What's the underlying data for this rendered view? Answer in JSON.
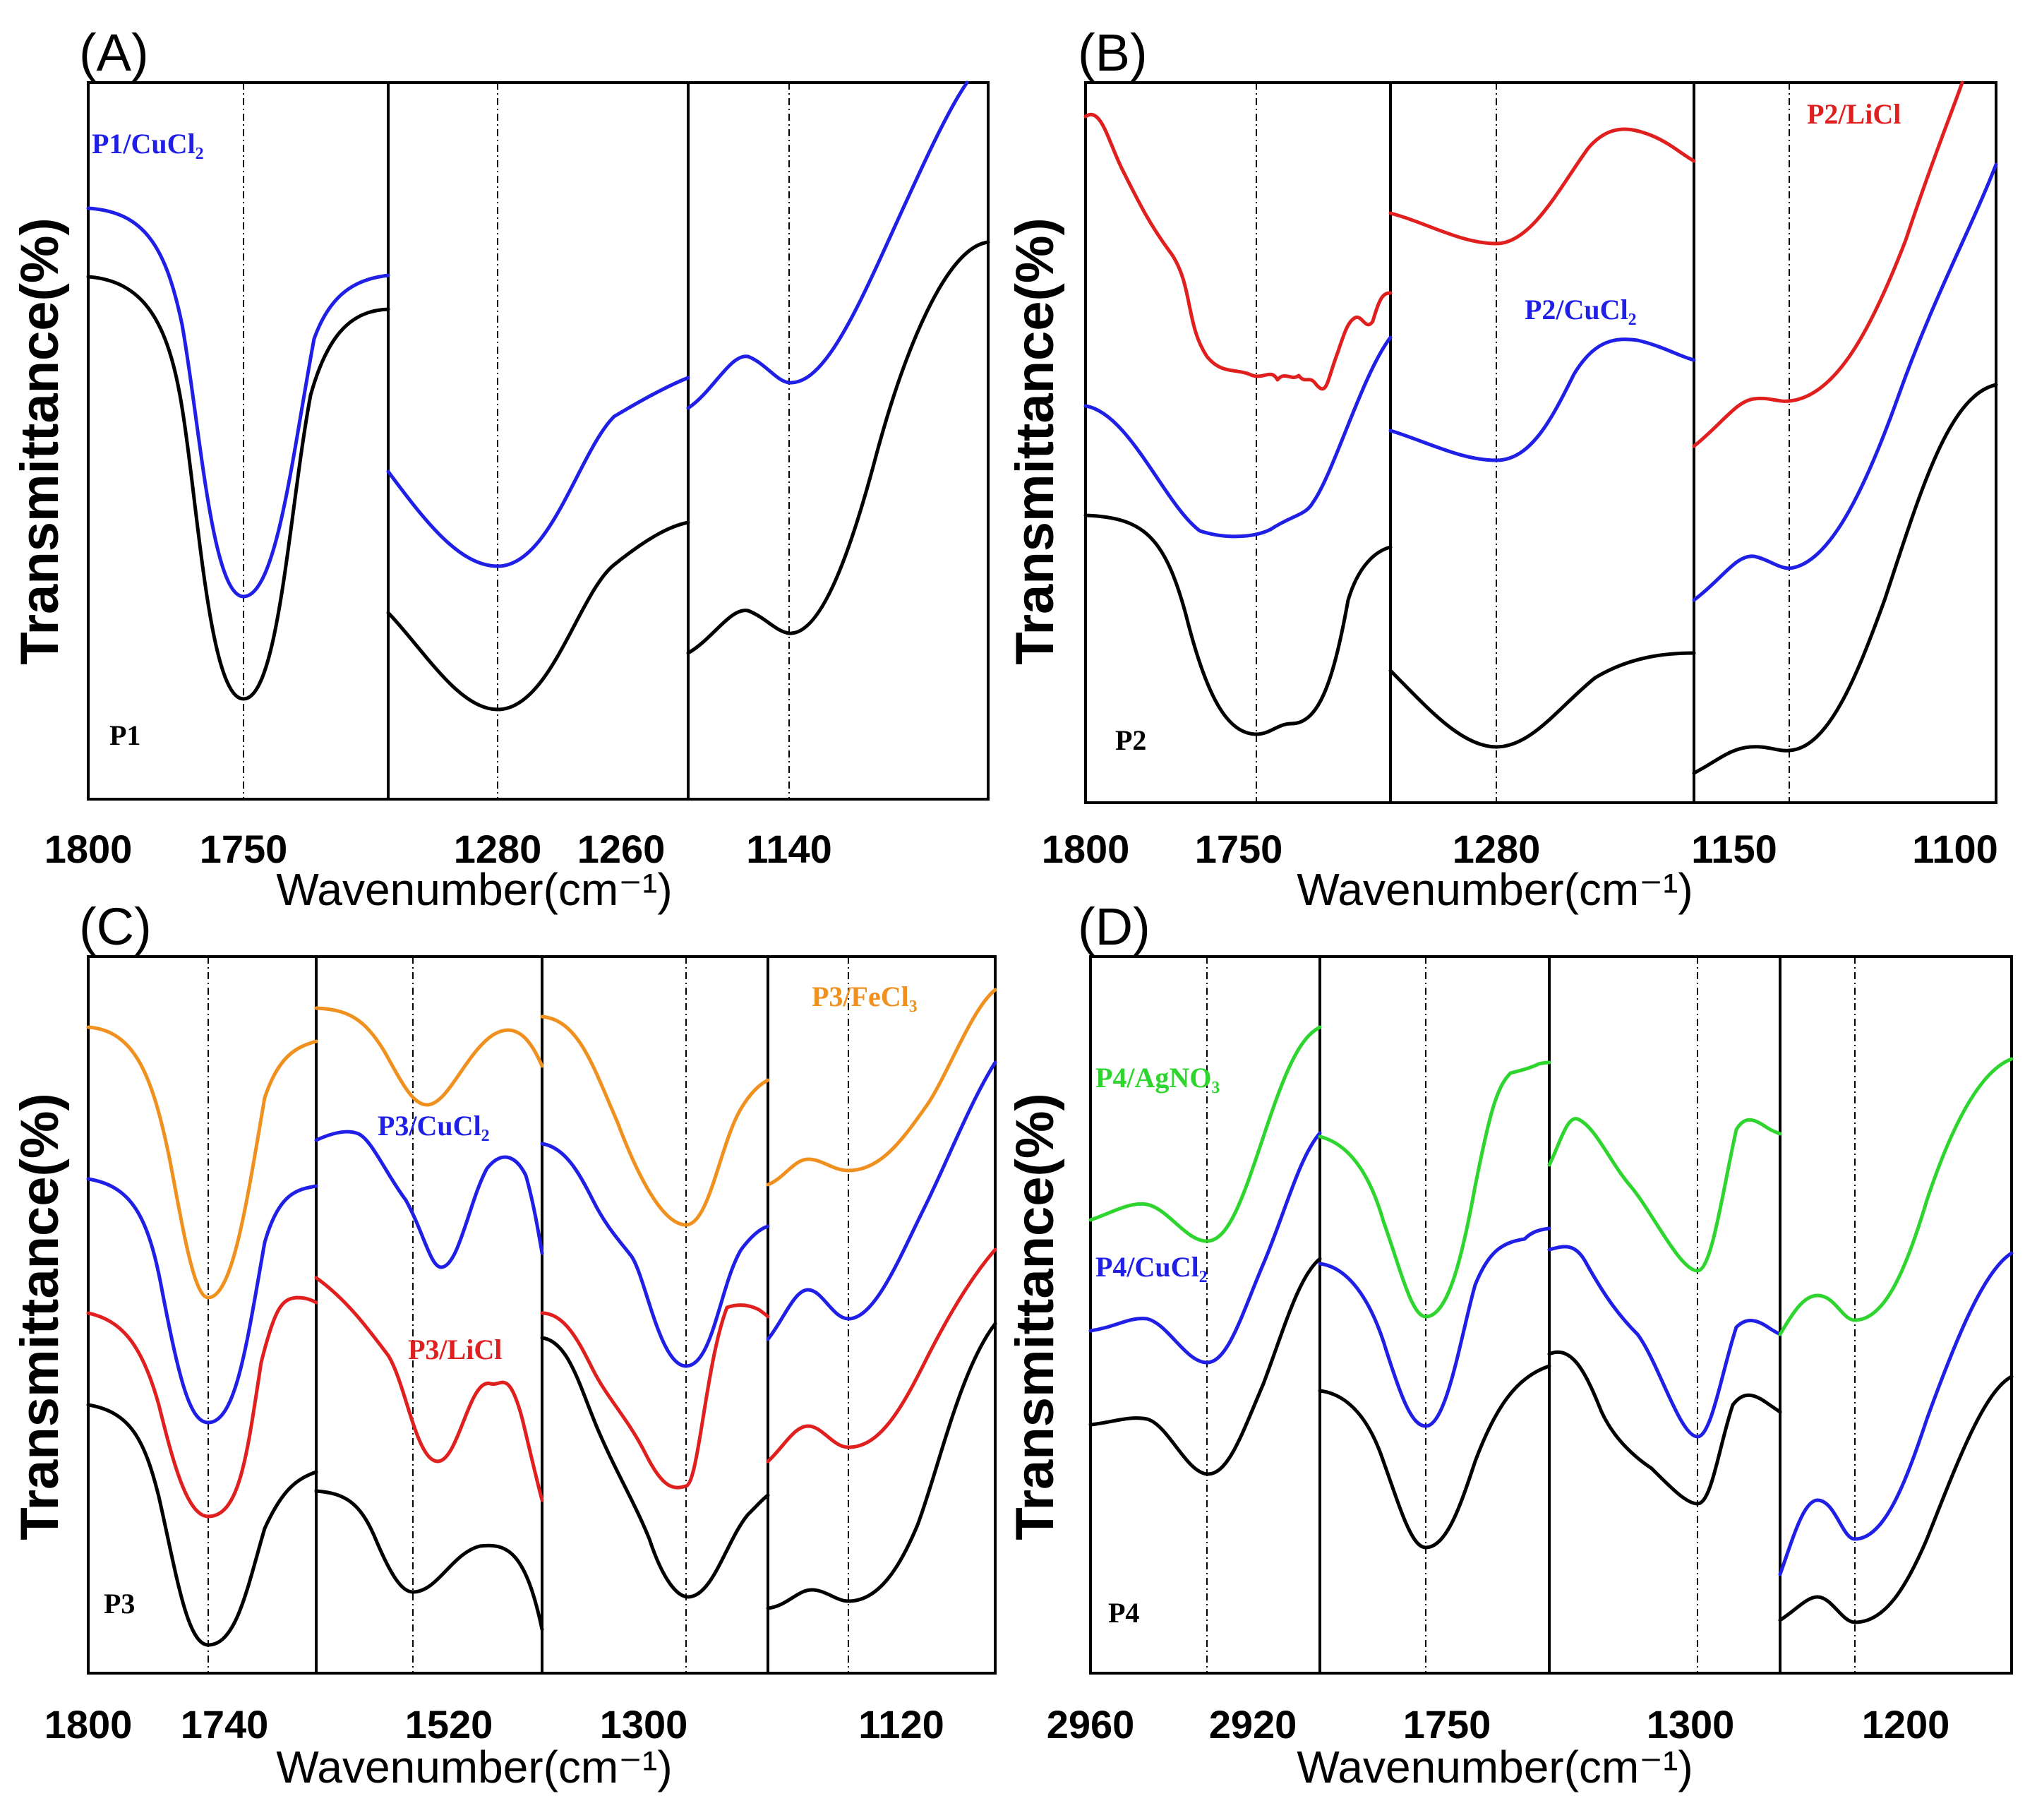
{
  "figure": {
    "colors": {
      "black": "#000000",
      "blue": "#1f1fe6",
      "red": "#e01f1f",
      "orange": "#f0901e",
      "green": "#2ed52e"
    }
  },
  "chart_data": [
    {
      "panel": "(A)",
      "type": "line",
      "title": "",
      "xlabel": "Wavenumber(cm⁻¹)",
      "ylabel": "Transmittance(%)",
      "ytick_labels": [],
      "segments": [
        {
          "xlim": [
            1800,
            1700
          ],
          "ticks": [
            1800,
            1750
          ],
          "tick_labels": [
            "1800",
            "1750"
          ],
          "refline": 1750
        },
        {
          "xlim": [
            1300,
            1250
          ],
          "ticks": [
            1280,
            1260
          ],
          "tick_labels": [
            "1280",
            "1260"
          ],
          "refline": 1280
        },
        {
          "xlim": [
            1150,
            1105
          ],
          "ticks": [
            1140
          ],
          "tick_labels": [
            "1140"
          ],
          "refline": 1140
        }
      ],
      "series": [
        {
          "name": "P1",
          "color": "#000000",
          "label": "P1"
        },
        {
          "name": "P1/CuCl₂",
          "color": "#1f1fe6",
          "label": "P1/CuCl₂"
        }
      ]
    },
    {
      "panel": "(B)",
      "type": "line",
      "title": "",
      "xlabel": "Wavenumber(cm⁻¹)",
      "ylabel": "Transmittance(%)",
      "ytick_labels": [],
      "segments": [
        {
          "xlim": [
            1800,
            1700
          ],
          "ticks": [
            1800,
            1750
          ],
          "tick_labels": [
            "1800",
            "1750"
          ],
          "refline": 1745
        },
        {
          "xlim": [
            1300,
            1260
          ],
          "ticks": [
            1280
          ],
          "tick_labels": [
            "1280"
          ],
          "refline": 1280
        },
        {
          "xlim": [
            1160,
            1090
          ],
          "ticks": [
            1150,
            1100
          ],
          "tick_labels": [
            "1150",
            "1100"
          ],
          "refline": 1140
        }
      ],
      "series": [
        {
          "name": "P2",
          "color": "#000000",
          "label": "P2"
        },
        {
          "name": "P2/CuCl₂",
          "color": "#1f1fe6",
          "label": "P2/CuCl₂"
        },
        {
          "name": "P2/LiCl",
          "color": "#e01f1f",
          "label": "P2/LiCl"
        }
      ]
    },
    {
      "panel": "(C)",
      "type": "line",
      "title": "",
      "xlabel": "Wavenumber(cm⁻¹)",
      "ylabel": "Transmittance(%)",
      "ytick_labels": [],
      "segments": [
        {
          "xlim": [
            1800,
            1700
          ],
          "ticks": [
            1800,
            1740
          ],
          "tick_labels": [
            "1800",
            "1740"
          ],
          "refline": 1745
        },
        {
          "xlim": [
            1570,
            1480
          ],
          "ticks": [
            1520
          ],
          "tick_labels": [
            "1520"
          ],
          "refline": 1530
        },
        {
          "xlim": [
            1340,
            1260
          ],
          "ticks": [
            1300
          ],
          "tick_labels": [
            "1300"
          ],
          "refline": 1290
        },
        {
          "xlim": [
            1160,
            1100
          ],
          "ticks": [
            1120
          ],
          "tick_labels": [
            "1120"
          ],
          "refline": 1135
        }
      ],
      "series": [
        {
          "name": "P3",
          "color": "#000000",
          "label": "P3"
        },
        {
          "name": "P3/LiCl",
          "color": "#e01f1f",
          "label": "P3/LiCl"
        },
        {
          "name": "P3/CuCl₂",
          "color": "#1f1fe6",
          "label": "P3/CuCl₂"
        },
        {
          "name": "P3/FeCl₃",
          "color": "#f0901e",
          "label": "P3/FeCl₃"
        }
      ]
    },
    {
      "panel": "(D)",
      "type": "line",
      "title": "",
      "xlabel": "Wavenumber(cm⁻¹)",
      "ylabel": "Transmittance(%)",
      "ytick_labels": [],
      "segments": [
        {
          "xlim": [
            2960,
            2900
          ],
          "ticks": [
            2960,
            2920
          ],
          "tick_labels": [
            "2960",
            "2920"
          ],
          "refline": 2925
        },
        {
          "xlim": [
            1800,
            1700
          ],
          "ticks": [
            1750
          ],
          "tick_labels": [
            "1750"
          ],
          "refline": 1750
        },
        {
          "xlim": [
            1340,
            1260
          ],
          "ticks": [
            1300
          ],
          "tick_labels": [
            "1300"
          ],
          "refline": 1295
        },
        {
          "xlim": [
            1240,
            1150
          ],
          "ticks": [
            1200
          ],
          "tick_labels": [
            "1200"
          ],
          "refline": 1210
        }
      ],
      "series": [
        {
          "name": "P4",
          "color": "#000000",
          "label": "P4"
        },
        {
          "name": "P4/CuCl₂",
          "color": "#1f1fe6",
          "label": "P4/CuCl₂"
        },
        {
          "name": "P4/AgNO₃",
          "color": "#2ed52e",
          "label": "P4/AgNO₃"
        }
      ]
    }
  ]
}
